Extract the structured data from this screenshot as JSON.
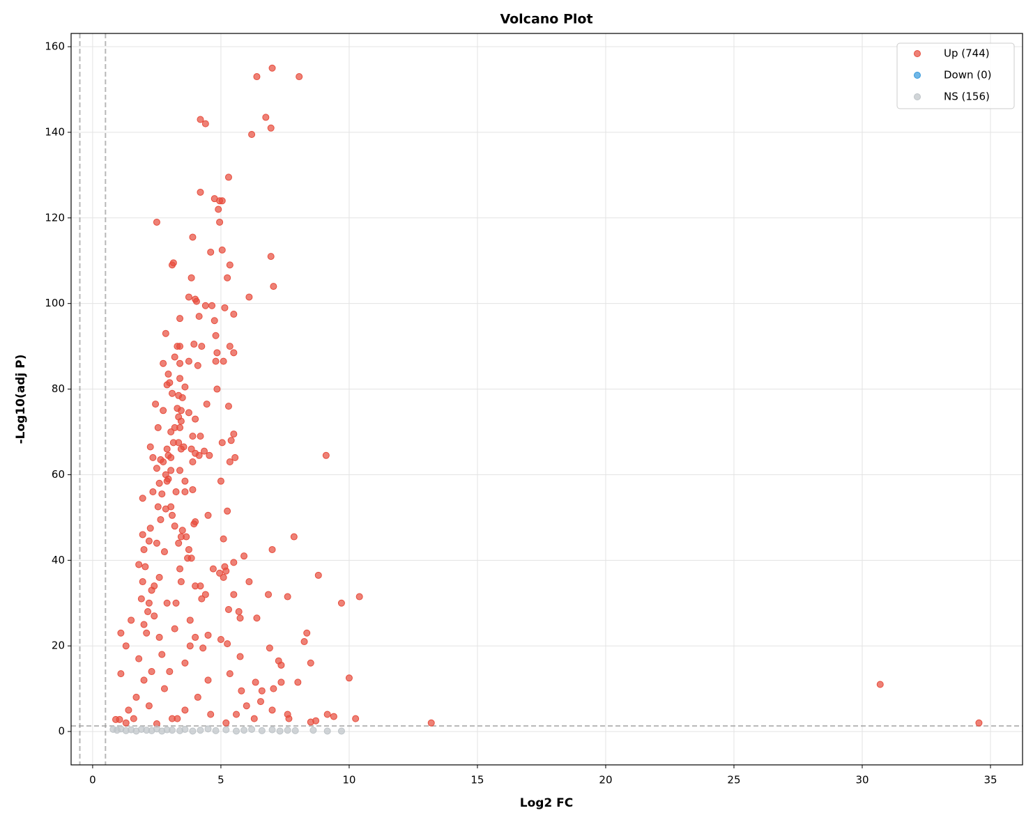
{
  "chart_data": {
    "type": "scatter",
    "title": "Volcano Plot",
    "x_label": "Log2 FC",
    "y_label": "-Log10(adj P)",
    "xlim": [
      -0.84,
      36.25
    ],
    "ylim": [
      -7.8,
      163.1
    ],
    "xticks": [
      0,
      5,
      10,
      15,
      20,
      25,
      30,
      35
    ],
    "yticks": [
      0,
      20,
      40,
      60,
      80,
      100,
      120,
      140,
      160
    ],
    "grid": true,
    "legend": "upper right",
    "thresholds": {
      "log2fc": [
        -0.5,
        0.5
      ],
      "neg_log10_p": 1.3
    },
    "series": [
      {
        "name": "Up (744)",
        "color": "#e74c3c",
        "x": [
          7.0,
          6.4,
          8.05,
          4.2,
          4.4,
          6.75,
          6.2,
          6.95,
          5.3,
          4.2,
          4.75,
          4.95,
          5.05,
          4.9,
          2.5,
          4.95,
          3.9,
          5.05,
          4.6,
          6.95,
          3.15,
          3.1,
          5.35,
          3.85,
          5.25,
          7.05,
          3.75,
          4.0,
          4.05,
          6.1,
          4.4,
          4.65,
          5.15,
          4.15,
          5.5,
          3.4,
          4.75,
          2.85,
          4.8,
          3.95,
          3.3,
          3.4,
          4.25,
          5.35,
          4.85,
          5.5,
          3.2,
          3.75,
          4.8,
          5.1,
          2.75,
          3.4,
          4.1,
          2.95,
          3.4,
          3.0,
          2.9,
          3.6,
          4.85,
          3.1,
          3.35,
          3.5,
          2.45,
          3.3,
          4.45,
          5.3,
          2.75,
          3.45,
          3.75,
          3.35,
          4.0,
          3.45,
          2.55,
          3.2,
          3.4,
          5.5,
          3.05,
          3.9,
          4.2,
          3.35,
          3.15,
          5.05,
          5.4,
          2.25,
          3.55,
          3.85,
          2.9,
          3.45,
          4.0,
          4.35,
          4.55,
          4.15,
          9.1,
          2.35,
          2.95,
          3.05,
          2.65,
          2.75,
          3.9,
          5.35,
          5.55,
          2.5,
          3.05,
          3.4,
          2.85,
          2.95,
          3.6,
          5.0,
          2.6,
          2.9,
          1.95,
          2.35,
          3.25,
          3.6,
          3.9,
          2.7,
          2.55,
          2.85,
          3.05,
          5.25,
          3.1,
          2.65,
          4.5,
          4.0,
          3.2,
          3.95,
          2.25,
          3.5,
          1.95,
          7.85,
          5.1,
          3.45,
          3.65,
          2.5,
          2.2,
          3.35,
          7.0,
          2.0,
          3.75,
          2.8,
          5.9,
          3.7,
          3.85,
          5.5,
          1.8,
          2.05,
          5.15,
          4.7,
          3.4,
          5.2,
          4.95,
          8.8,
          5.1,
          1.95,
          3.45,
          6.1,
          4.0,
          2.4,
          4.2,
          6.85,
          7.6,
          10.4,
          4.4,
          5.5,
          9.7,
          4.25,
          3.25,
          2.2,
          1.5,
          5.3,
          5.7,
          5.75,
          6.4,
          3.8,
          2.0,
          8.35,
          1.1,
          4.5,
          8.25,
          5.0,
          5.25,
          6.9,
          1.3,
          3.8,
          5.75,
          7.25,
          7.35,
          8.5,
          4.3,
          5.35,
          1.1,
          10.0,
          7.35,
          8.0,
          6.35,
          30.7,
          5.8,
          6.6,
          7.05,
          6.55,
          7.6,
          9.15,
          9.4,
          10.25,
          13.2,
          34.55,
          8.5,
          8.7,
          0.9,
          1.05,
          7.0,
          7.65,
          6.3,
          2.0,
          2.3,
          1.8,
          2.6,
          2.15,
          1.9,
          2.3,
          2.6,
          2.1,
          1.4,
          1.7,
          2.2,
          2.8,
          3.1,
          3.6,
          4.1,
          4.6,
          5.2,
          5.6,
          6.0,
          1.3,
          1.6,
          2.5,
          3.3,
          4.5,
          3.0,
          2.7,
          3.6,
          4.0,
          2.4,
          2.9,
          3.2
        ],
        "values": [
          155,
          153,
          153,
          143,
          142,
          143.5,
          139.5,
          141,
          129.5,
          126,
          124.5,
          124,
          124,
          122,
          119,
          119,
          115.5,
          112.5,
          112,
          111,
          109.5,
          109,
          109,
          106,
          106,
          104,
          101.5,
          101,
          100.5,
          101.5,
          99.5,
          99.5,
          99,
          97,
          97.5,
          96.5,
          96,
          93,
          92.5,
          90.5,
          90,
          90,
          90,
          90,
          88.5,
          88.5,
          87.5,
          86.5,
          86.5,
          86.5,
          86,
          86,
          85.5,
          83.5,
          82.5,
          81.5,
          81,
          80.5,
          80,
          79,
          78.5,
          78,
          76.5,
          75.5,
          76.5,
          76,
          75,
          75,
          74.5,
          73.5,
          73,
          72.5,
          71,
          71,
          71,
          69.5,
          70,
          69,
          69,
          67.5,
          67.5,
          67.5,
          68,
          66.5,
          66.5,
          66,
          66,
          66,
          65,
          65.5,
          64.5,
          64.5,
          64.5,
          64,
          64.5,
          64,
          63.5,
          63,
          63,
          63,
          64,
          61.5,
          61,
          61,
          60,
          59,
          58.5,
          58.5,
          58,
          58.5,
          54.5,
          56,
          56,
          56,
          56.5,
          55.5,
          52.5,
          52,
          52.5,
          51.5,
          50.5,
          49.5,
          50.5,
          49,
          48,
          48.5,
          47.5,
          47,
          46,
          45.5,
          45,
          45.5,
          45.5,
          44,
          44.5,
          44,
          42.5,
          42.5,
          42.5,
          42,
          41,
          40.5,
          40.5,
          39.5,
          39,
          38.5,
          38.5,
          38,
          38,
          37.5,
          37,
          36.5,
          36,
          35,
          35,
          35,
          34,
          34,
          34,
          32,
          31.5,
          31.5,
          32,
          32,
          30,
          31,
          30,
          30,
          26,
          28.5,
          28,
          26.5,
          26.5,
          26,
          25,
          23,
          23,
          22.5,
          21,
          21.5,
          20.5,
          19.5,
          20,
          20,
          17.5,
          16.5,
          15.5,
          16,
          19.5,
          13.5,
          13.5,
          12.5,
          11.5,
          11.5,
          11.5,
          11,
          9.5,
          9.5,
          10,
          7,
          4,
          4,
          3.5,
          3,
          2,
          2,
          2.2,
          2.5,
          2.8,
          2.8,
          5,
          3,
          3,
          12,
          14,
          17,
          22,
          28,
          31,
          33,
          36,
          23,
          5,
          8,
          6,
          10,
          3,
          5,
          8,
          4,
          2,
          4,
          6,
          2,
          3,
          1.8,
          3,
          12,
          14,
          18,
          16,
          22,
          27,
          30,
          24
        ]
      },
      {
        "name": "Down (0)",
        "color": "#3498db",
        "x": [],
        "values": []
      },
      {
        "name": "NS (156)",
        "color": "#bdc3c7",
        "x": [
          0.8,
          0.95,
          1.1,
          1.3,
          1.5,
          1.7,
          1.9,
          2.1,
          2.3,
          2.5,
          2.7,
          2.9,
          3.1,
          3.4,
          3.6,
          3.9,
          4.2,
          4.5,
          4.8,
          5.2,
          5.6,
          5.9,
          6.2,
          6.6,
          7.0,
          7.3,
          7.6,
          7.9,
          8.6,
          9.15,
          9.7
        ],
        "values": [
          0.5,
          0.3,
          0.6,
          0.2,
          0.4,
          0.1,
          0.5,
          0.3,
          0.2,
          0.6,
          0.1,
          0.4,
          0.3,
          0.2,
          0.5,
          0.1,
          0.3,
          0.6,
          0.2,
          0.4,
          0.1,
          0.3,
          0.5,
          0.2,
          0.4,
          0.1,
          0.3,
          0.2,
          0.3,
          0.1,
          0.1
        ]
      }
    ]
  }
}
